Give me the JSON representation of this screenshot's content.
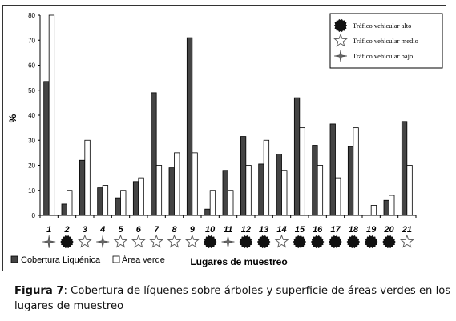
{
  "chart_data": {
    "type": "bar",
    "title": "",
    "xlabel": "Lugares de muestreo",
    "ylabel": "%",
    "ylim": [
      0,
      80
    ],
    "yticks": [
      0,
      10,
      20,
      30,
      40,
      50,
      60,
      70,
      80
    ],
    "categories": [
      "1",
      "2",
      "3",
      "4",
      "5",
      "6",
      "7",
      "8",
      "9",
      "10",
      "11",
      "12",
      "13",
      "14",
      "15",
      "16",
      "17",
      "18",
      "19",
      "20",
      "21"
    ],
    "series": [
      {
        "name": "Cobertura Liquénica",
        "color": "#444444",
        "values": [
          53.5,
          4.5,
          22,
          11,
          7,
          13.5,
          49,
          19,
          71,
          2.5,
          18,
          31.5,
          20.5,
          24.5,
          47,
          28,
          36.5,
          27.5,
          0,
          6,
          37.5
        ]
      },
      {
        "name": "Área verde",
        "color": "#ffffff",
        "values": [
          80,
          10,
          30,
          12,
          10,
          15,
          20,
          25,
          25,
          10,
          10,
          20,
          30,
          18,
          35,
          20,
          15,
          35,
          4,
          8,
          20
        ]
      }
    ],
    "traffic": [
      "bajo",
      "alto",
      "medio",
      "bajo",
      "medio",
      "medio",
      "medio",
      "medio",
      "medio",
      "alto",
      "bajo",
      "alto",
      "alto",
      "medio",
      "alto",
      "alto",
      "alto",
      "alto",
      "alto",
      "alto",
      "medio"
    ],
    "traffic_legend": {
      "alto": "Tráfico vehicular alto",
      "medio": "Tráfico vehicular medio",
      "bajo": "Tráfico vehicular bajo"
    },
    "grid": false,
    "legend_position": "top-right"
  },
  "caption": {
    "label": "Figura 7",
    "text": ": Cobertura de líquenes sobre árboles y superficie de áreas verdes en los lugares de muestreo"
  }
}
